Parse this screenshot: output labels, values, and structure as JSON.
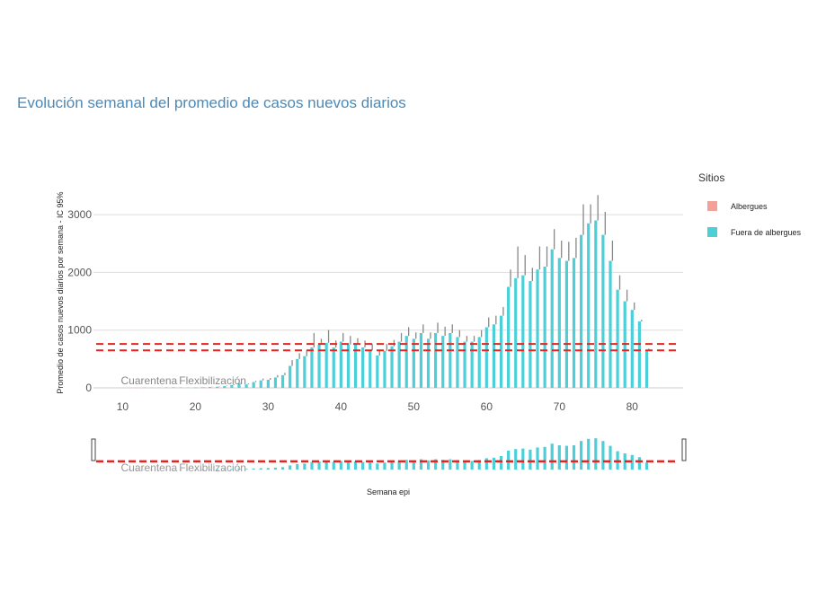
{
  "chart_data": {
    "type": "bar",
    "title": "Evolución semanal del promedio de casos nuevos diarios",
    "xlabel": "Semana epi",
    "ylabel": "Promedio de casos nuevos diarios por semana - IC 95%",
    "x_ticks": [
      10,
      20,
      30,
      40,
      50,
      60,
      70,
      80
    ],
    "y_ticks": [
      0,
      1000,
      2000,
      3000
    ],
    "xlim": [
      6,
      87
    ],
    "ylim": [
      0,
      3500
    ],
    "grid": true,
    "legend": {
      "title": "Sitios",
      "placement": "right",
      "entries": [
        {
          "label": "Albergues",
          "color": "#f4a09a"
        },
        {
          "label": "Fuera de albergues",
          "color": "#4ccfd8"
        }
      ]
    },
    "reference_lines": [
      {
        "value": 760,
        "style": "dashed",
        "color": "#e8231f"
      },
      {
        "value": 650,
        "style": "dashed",
        "color": "#e8231f"
      }
    ],
    "annotations": [
      {
        "text": "Cuarentena",
        "x": 11
      },
      {
        "text": "Flexibilización",
        "x": 19
      }
    ],
    "error_bar_color": "#888888",
    "series": [
      {
        "name": "Albergues",
        "color": "#f4a09a",
        "x": [
          11,
          12,
          13,
          14,
          15,
          16,
          17,
          18,
          19,
          20,
          21,
          22,
          23,
          24
        ],
        "values": [
          3,
          4,
          5,
          6,
          8,
          10,
          12,
          10,
          8,
          6,
          5,
          4,
          3,
          2
        ]
      },
      {
        "name": "Fuera de albergues",
        "color": "#4ccfd8",
        "x": [
          20,
          21,
          22,
          23,
          24,
          25,
          26,
          27,
          28,
          29,
          30,
          31,
          32,
          33,
          34,
          35,
          36,
          37,
          38,
          39,
          40,
          41,
          42,
          43,
          44,
          45,
          46,
          47,
          48,
          49,
          50,
          51,
          52,
          53,
          54,
          55,
          56,
          57,
          58,
          59,
          60,
          61,
          62,
          63,
          64,
          65,
          66,
          67,
          68,
          69,
          70,
          71,
          72,
          73,
          74,
          75,
          76,
          77,
          78,
          79,
          80,
          81,
          82
        ],
        "values": [
          5,
          10,
          15,
          20,
          30,
          50,
          80,
          60,
          100,
          130,
          140,
          180,
          220,
          380,
          500,
          550,
          700,
          750,
          780,
          700,
          800,
          750,
          750,
          700,
          650,
          560,
          640,
          720,
          800,
          900,
          850,
          950,
          850,
          950,
          900,
          950,
          880,
          800,
          800,
          880,
          1050,
          1100,
          1250,
          1750,
          1900,
          1950,
          1850,
          2050,
          2100,
          2400,
          2250,
          2200,
          2250,
          2650,
          2850,
          2900,
          2650,
          2200,
          1700,
          1500,
          1350,
          1150,
          650
        ],
        "ci_upper": [
          8,
          14,
          20,
          26,
          38,
          62,
          95,
          75,
          120,
          160,
          170,
          220,
          260,
          480,
          600,
          650,
          950,
          850,
          1000,
          820,
          950,
          900,
          860,
          820,
          760,
          660,
          760,
          830,
          950,
          1050,
          960,
          1100,
          960,
          1130,
          1060,
          1100,
          1000,
          900,
          900,
          1000,
          1220,
          1250,
          1400,
          2050,
          2450,
          2300,
          2080,
          2450,
          2450,
          2750,
          2550,
          2530,
          2600,
          3180,
          3180,
          3340,
          3050,
          2550,
          1950,
          1700,
          1480,
          1180,
          680
        ]
      }
    ]
  }
}
